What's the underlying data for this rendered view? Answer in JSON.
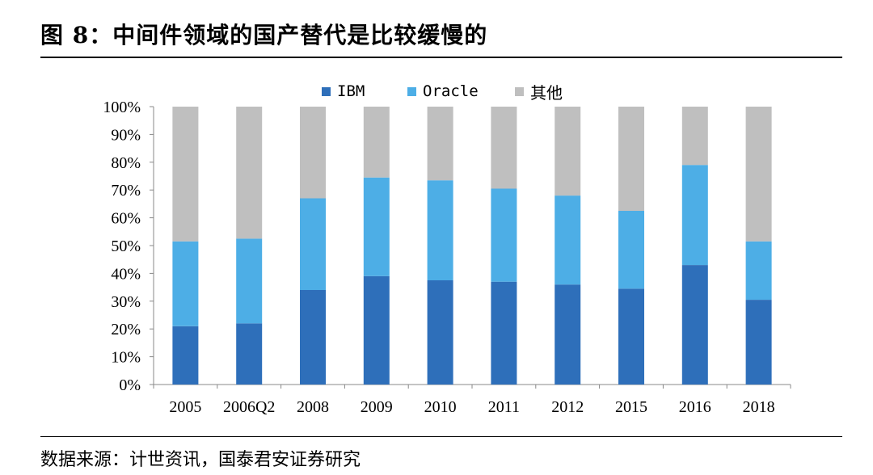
{
  "title": "图 8：中间件领域的国产替代是比较缓慢的",
  "source": "数据来源：计世资讯，国泰君安证券研究",
  "chart_data": {
    "type": "bar",
    "stacked": true,
    "categories": [
      "2005",
      "2006Q2",
      "2008",
      "2009",
      "2010",
      "2011",
      "2012",
      "2015",
      "2016",
      "2018"
    ],
    "series": [
      {
        "name": "IBM",
        "color": "#2E6FBA",
        "values": [
          21,
          22,
          34,
          39,
          37.5,
          37,
          36,
          34.5,
          43,
          30.5
        ]
      },
      {
        "name": "Oracle",
        "color": "#4DAEE6",
        "values": [
          30.5,
          30.5,
          33,
          35.5,
          36,
          33.5,
          32,
          28,
          36,
          21
        ]
      },
      {
        "name": "其他",
        "color": "#BFBFBF",
        "values": [
          48.5,
          47.5,
          33,
          25.5,
          26.5,
          29.5,
          32,
          37.5,
          21,
          48.5
        ]
      }
    ],
    "yticks": [
      "0%",
      "10%",
      "20%",
      "30%",
      "40%",
      "50%",
      "60%",
      "70%",
      "80%",
      "90%",
      "100%"
    ],
    "ylim": [
      0,
      100
    ],
    "legend_position": "top-center"
  }
}
